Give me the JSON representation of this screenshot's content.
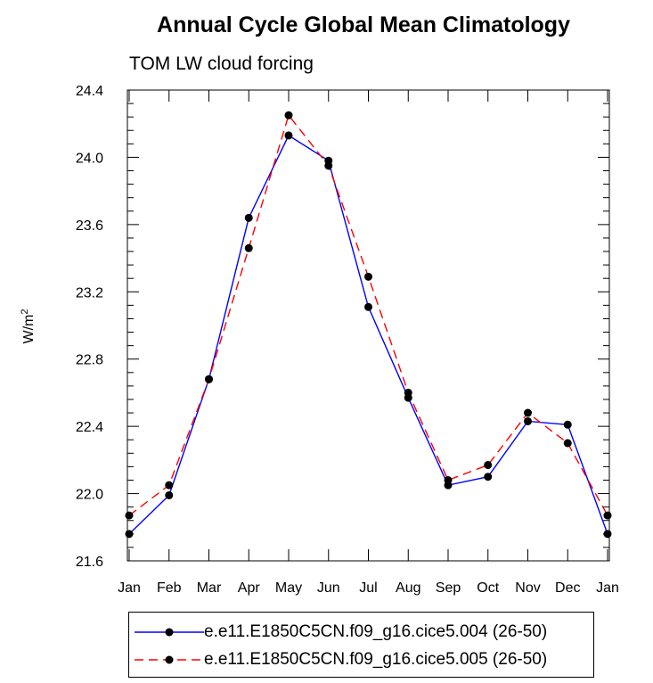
{
  "chart_data": {
    "type": "line",
    "title": "Annual Cycle Global Mean Climatology",
    "subtitle": "TOM LW cloud forcing",
    "ylabel": "W/m",
    "ylabel_sup": "2",
    "xlabel": "",
    "categories": [
      "Jan",
      "Feb",
      "Mar",
      "Apr",
      "May",
      "Jun",
      "Jul",
      "Aug",
      "Sep",
      "Oct",
      "Nov",
      "Dec",
      "Jan"
    ],
    "ylim": [
      21.6,
      24.4
    ],
    "yticks": [
      "21.6",
      "22.0",
      "22.4",
      "22.8",
      "23.2",
      "23.6",
      "24.0",
      "24.4"
    ],
    "grid": false,
    "legend_position": "bottom",
    "series": [
      {
        "name": "e.e11.E1850C5CN.f09_g16.cice5.004 (26-50)",
        "color": "#0000ff",
        "dash": "solid",
        "marker": "filled-circle",
        "values": [
          21.76,
          21.99,
          22.68,
          23.64,
          24.13,
          23.98,
          23.11,
          22.57,
          22.05,
          22.1,
          22.43,
          22.41,
          21.76
        ]
      },
      {
        "name": "e.e11.E1850C5CN.f09_g16.cice5.005 (26-50)",
        "color": "#ff0000",
        "dash": "dashed",
        "marker": "filled-circle",
        "values": [
          21.87,
          22.05,
          22.68,
          23.46,
          24.25,
          23.95,
          23.29,
          22.6,
          22.08,
          22.17,
          22.48,
          22.3,
          21.87
        ]
      }
    ]
  }
}
